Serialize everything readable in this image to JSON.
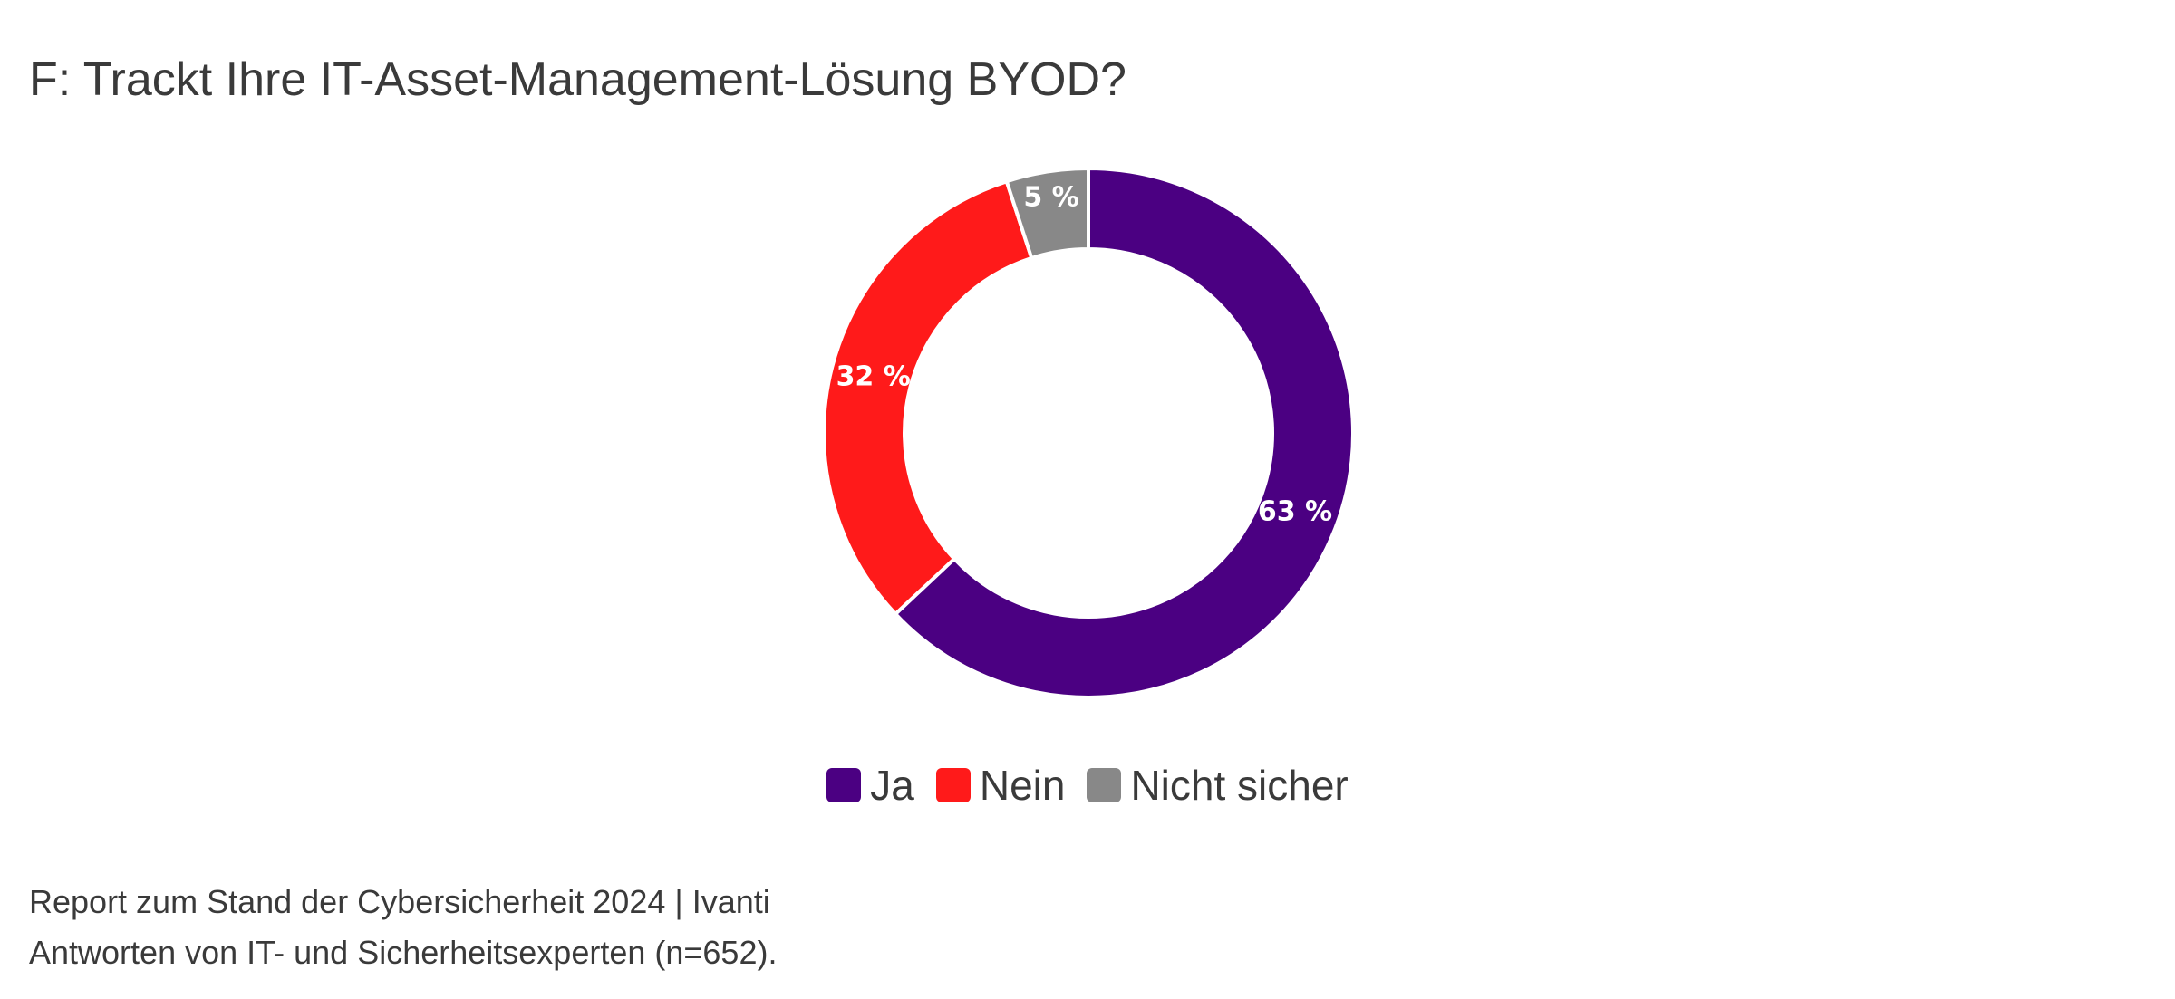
{
  "title": "F: Trackt Ihre IT-Asset-Management-Lösung BYOD?",
  "chart_data": {
    "type": "pie",
    "donut": true,
    "categories": [
      "Ja",
      "Nein",
      "Nicht sicher"
    ],
    "values": [
      63,
      32,
      5
    ],
    "labels": [
      "63 %",
      "32 %",
      "5 %"
    ],
    "colors": [
      "#4b0082",
      "#ff1a1a",
      "#888888"
    ],
    "legend_position": "bottom"
  },
  "footer": {
    "line1": "Report zum Stand der Cybersicherheit 2024 | Ivanti",
    "line2": "Antworten von IT- und Sicherheitsexperten (n=652)."
  }
}
